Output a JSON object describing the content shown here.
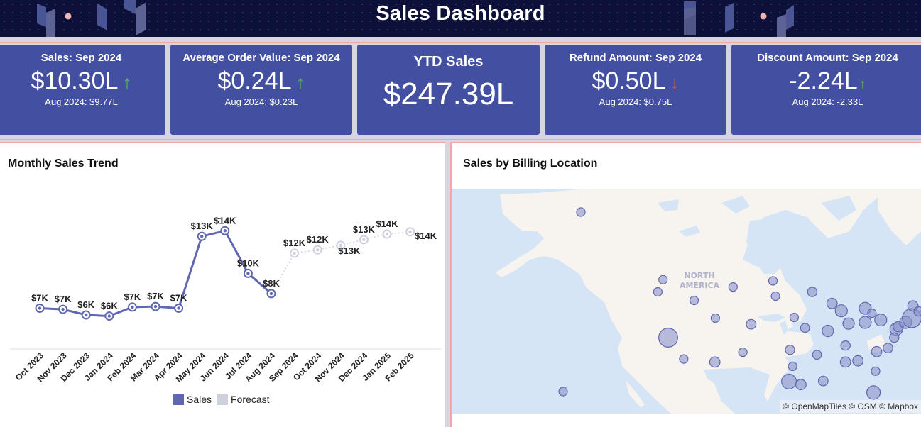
{
  "header": {
    "title": "Sales Dashboard"
  },
  "kpis": [
    {
      "title": "Sales: Sep 2024",
      "value": "$10.30L",
      "trend": "up",
      "arrow": "↑",
      "comparison": "Aug 2024: $9.77L"
    },
    {
      "title": "Average Order Value: Sep 2024",
      "value": "$0.24L",
      "trend": "up",
      "arrow": "↑",
      "comparison": "Aug 2024: $0.23L"
    },
    {
      "title": "YTD Sales",
      "value": "$247.39L"
    },
    {
      "title": "Refund Amount: Sep 2024",
      "value": "$0.50L",
      "trend": "down",
      "arrow": "↓",
      "comparison": "Aug 2024: $0.75L"
    },
    {
      "title": "Discount Amount: Sep 2024",
      "value": "-2.24L",
      "trend": "up",
      "arrow": "↑",
      "comparison": "Aug 2024: -2.33L"
    }
  ],
  "colors": {
    "kpi_bg": "#434fa1",
    "up": "#5cb85c",
    "down": "#c0604a",
    "sales": "#5f67b0",
    "forecast": "#cdd0df"
  },
  "trend_panel": {
    "title": "Monthly Sales Trend"
  },
  "map_panel": {
    "title": "Sales by Billing Location",
    "region_label_1": "NORTH",
    "region_label_2": "AMERICA",
    "attribution": "© OpenMapTiles © OSM © Mapbox"
  },
  "chart_data": {
    "type": "line",
    "title": "Monthly Sales Trend",
    "xlabel": "",
    "ylabel": "",
    "categories": [
      "Oct 2023",
      "Nov 2023",
      "Dec 2023",
      "Jan 2024",
      "Feb 2024",
      "Mar 2024",
      "Apr 2024",
      "May 2024",
      "Jun 2024",
      "Jul 2024",
      "Aug 2024",
      "Sep 2024",
      "Oct 2024",
      "Nov 2024",
      "Dec 2024",
      "Jan 2025",
      "Feb 2025"
    ],
    "series": [
      {
        "name": "Sales",
        "values": [
          7.0,
          6.9,
          6.4,
          6.3,
          7.1,
          7.15,
          7.0,
          13.4,
          13.9,
          10.1,
          8.3,
          null,
          null,
          null,
          null,
          null,
          null
        ],
        "labels": [
          "$7K",
          "$7K",
          "$6K",
          "$6K",
          "$7K",
          "$7K",
          "$7K",
          "$13K",
          "$14K",
          "$10K",
          "$8K",
          null,
          null,
          null,
          null,
          null,
          null
        ]
      },
      {
        "name": "Forecast",
        "values": [
          null,
          null,
          null,
          null,
          null,
          null,
          null,
          null,
          null,
          null,
          8.3,
          11.9,
          12.2,
          12.6,
          13.1,
          13.6,
          13.8
        ],
        "labels": [
          null,
          null,
          null,
          null,
          null,
          null,
          null,
          null,
          null,
          null,
          null,
          "$12K",
          "$12K",
          "$13K",
          "$13K",
          "$14K",
          "$14K"
        ]
      }
    ],
    "ylim": [
      4,
      16
    ],
    "grid": false,
    "legend": "bottom"
  },
  "map_bubbles": [
    {
      "lon": -150,
      "lat": 64,
      "size": 1
    },
    {
      "lon": -157,
      "lat": 21,
      "size": 1
    },
    {
      "lon": -122,
      "lat": 47,
      "size": 1
    },
    {
      "lon": -123,
      "lat": 45,
      "size": 1
    },
    {
      "lon": -121,
      "lat": 37.5,
      "size": 5
    },
    {
      "lon": -118,
      "lat": 34,
      "size": 1
    },
    {
      "lon": -116,
      "lat": 43.6,
      "size": 1
    },
    {
      "lon": -112,
      "lat": 33.5,
      "size": 1.5
    },
    {
      "lon": -111.9,
      "lat": 40.7,
      "size": 1
    },
    {
      "lon": -108.5,
      "lat": 45.8,
      "size": 1
    },
    {
      "lon": -105,
      "lat": 39.7,
      "size": 1.3
    },
    {
      "lon": -106.6,
      "lat": 35.1,
      "size": 1
    },
    {
      "lon": -100.8,
      "lat": 46.8,
      "size": 1
    },
    {
      "lon": -100.3,
      "lat": 44.3,
      "size": 1
    },
    {
      "lon": -96.7,
      "lat": 40.8,
      "size": 1
    },
    {
      "lon": -97.5,
      "lat": 35.5,
      "size": 1.2
    },
    {
      "lon": -97,
      "lat": 32.8,
      "size": 1
    },
    {
      "lon": -97.7,
      "lat": 30.3,
      "size": 3
    },
    {
      "lon": -95.4,
      "lat": 29.8,
      "size": 1.5
    },
    {
      "lon": -93.2,
      "lat": 45,
      "size": 1.2
    },
    {
      "lon": -94.6,
      "lat": 39.1,
      "size": 1.1
    },
    {
      "lon": -92.3,
      "lat": 34.7,
      "size": 1.1
    },
    {
      "lon": -91.1,
      "lat": 30.4,
      "size": 1.3
    },
    {
      "lon": -89.4,
      "lat": 43.1,
      "size": 1.5
    },
    {
      "lon": -87.6,
      "lat": 41.9,
      "size": 2
    },
    {
      "lon": -90.2,
      "lat": 38.6,
      "size": 1.8
    },
    {
      "lon": -86.2,
      "lat": 39.8,
      "size": 1.8
    },
    {
      "lon": -86.8,
      "lat": 36.2,
      "size": 1.2
    },
    {
      "lon": -86.8,
      "lat": 33.5,
      "size": 1.5
    },
    {
      "lon": -83,
      "lat": 40,
      "size": 2
    },
    {
      "lon": -83,
      "lat": 42.3,
      "size": 2
    },
    {
      "lon": -84.4,
      "lat": 33.7,
      "size": 1.5
    },
    {
      "lon": -81.7,
      "lat": 41.5,
      "size": 1
    },
    {
      "lon": -80.8,
      "lat": 35.2,
      "size": 1.5
    },
    {
      "lon": -81,
      "lat": 32,
      "size": 1
    },
    {
      "lon": -81.4,
      "lat": 28.5,
      "size": 2.5
    },
    {
      "lon": -80,
      "lat": 40.4,
      "size": 2
    },
    {
      "lon": -77,
      "lat": 38.9,
      "size": 2.2
    },
    {
      "lon": -76.6,
      "lat": 39.3,
      "size": 1.5
    },
    {
      "lon": -75.2,
      "lat": 40,
      "size": 2
    },
    {
      "lon": -74,
      "lat": 40.7,
      "size": 5
    },
    {
      "lon": -73.8,
      "lat": 42.7,
      "size": 1.5
    },
    {
      "lon": -72.7,
      "lat": 41.8,
      "size": 1.2
    },
    {
      "lon": -71.1,
      "lat": 42.4,
      "size": 1.5
    },
    {
      "lon": -71.4,
      "lat": 41.8,
      "size": 1
    },
    {
      "lon": -70.3,
      "lat": 43.7,
      "size": 1
    },
    {
      "lon": -78.6,
      "lat": 35.8,
      "size": 1.3
    },
    {
      "lon": -77.4,
      "lat": 37.5,
      "size": 1.2
    }
  ]
}
